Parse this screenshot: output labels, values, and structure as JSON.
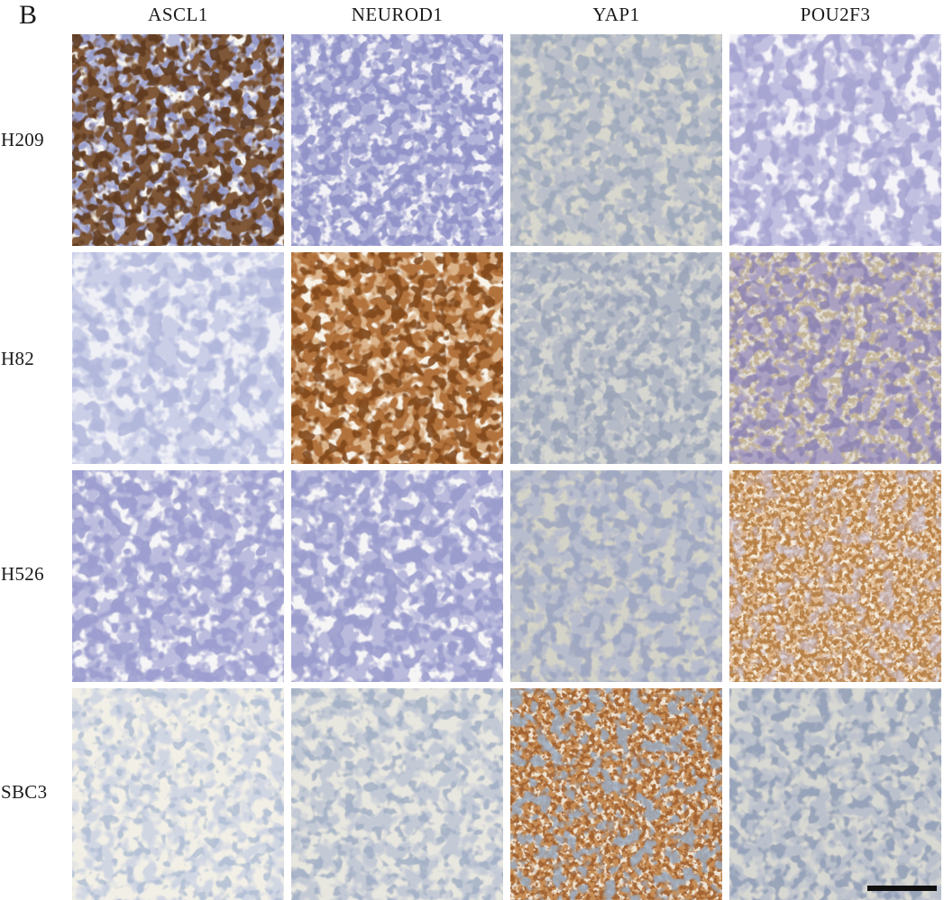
{
  "figure": {
    "panel_label": "B",
    "kind": "immunohistochemistry staining grid",
    "scale_bar": {
      "present": true,
      "color": "#101010"
    }
  },
  "columns": [
    {
      "label": "ASCL1"
    },
    {
      "label": "NEUROD1"
    },
    {
      "label": "YAP1"
    },
    {
      "label": "POU2F3"
    }
  ],
  "rows": [
    {
      "label": "H209"
    },
    {
      "label": "H82"
    },
    {
      "label": "H526"
    },
    {
      "label": "SBC3"
    }
  ],
  "tiles": [
    {
      "cell_line": "H209",
      "marker": "ASCL1",
      "appearance": "scattered dark-brown positive nuclei among pale blue cells on white background",
      "bg": "#f7f5f0",
      "layers": [
        {
          "c": "#b3b7da",
          "f": 0.055,
          "o": 3,
          "s": 11,
          "a": 7,
          "b": -2.7,
          "op": 0.95
        },
        {
          "c": "#8f94c6",
          "f": 0.075,
          "o": 2,
          "s": 19,
          "a": 8,
          "b": -3.7,
          "op": 0.85
        },
        {
          "c": "#7c5230",
          "f": 0.07,
          "o": 2,
          "s": 23,
          "a": 9,
          "b": -4.1,
          "op": 0.95
        },
        {
          "c": "#5f3a1e",
          "f": 0.085,
          "o": 2,
          "s": 31,
          "a": 9,
          "b": -4.5,
          "op": 0.9
        }
      ]
    },
    {
      "cell_line": "H209",
      "marker": "NEUROD1",
      "appearance": "diffuse pale blue-violet cells, negative",
      "bg": "#f2f1f6",
      "layers": [
        {
          "c": "#b0b1d8",
          "f": 0.065,
          "o": 3,
          "s": 41,
          "a": 7,
          "b": -2.7,
          "op": 0.95
        },
        {
          "c": "#8d8fc7",
          "f": 0.09,
          "o": 2,
          "s": 47,
          "a": 8,
          "b": -3.6,
          "op": 0.85
        }
      ]
    },
    {
      "cell_line": "H209",
      "marker": "YAP1",
      "appearance": "faint gray-blue cells on beige-gray background, negative",
      "bg": "#d8d7cd",
      "layers": [
        {
          "c": "#b7bdca",
          "f": 0.06,
          "o": 3,
          "s": 53,
          "a": 6,
          "b": -2.3,
          "op": 0.9
        },
        {
          "c": "#9aa6bb",
          "f": 0.08,
          "o": 2,
          "s": 59,
          "a": 7,
          "b": -3.4,
          "op": 0.8
        }
      ]
    },
    {
      "cell_line": "H209",
      "marker": "POU2F3",
      "appearance": "soft lavender cells on white background, negative",
      "bg": "#f4f3f8",
      "layers": [
        {
          "c": "#c0bee0",
          "f": 0.05,
          "o": 3,
          "s": 61,
          "a": 7,
          "b": -2.7,
          "op": 0.95
        },
        {
          "c": "#a3a1d0",
          "f": 0.065,
          "o": 2,
          "s": 67,
          "a": 8,
          "b": -3.8,
          "op": 0.85
        }
      ]
    },
    {
      "cell_line": "H82",
      "marker": "ASCL1",
      "appearance": "very pale lavender cells, negative",
      "bg": "#eff0f6",
      "layers": [
        {
          "c": "#c9cde7",
          "f": 0.05,
          "o": 3,
          "s": 71,
          "a": 7,
          "b": -2.8,
          "op": 0.95
        },
        {
          "c": "#adb3da",
          "f": 0.06,
          "o": 2,
          "s": 73,
          "a": 8,
          "b": -3.9,
          "op": 0.8
        }
      ]
    },
    {
      "cell_line": "H82",
      "marker": "NEUROD1",
      "appearance": "strong brown positive round nuclei on cream background",
      "bg": "#f8f3e9",
      "layers": [
        {
          "c": "#d9b085",
          "f": 0.07,
          "o": 2,
          "s": 79,
          "a": 8,
          "b": -3.1,
          "op": 0.95
        },
        {
          "c": "#b06f38",
          "f": 0.075,
          "o": 2,
          "s": 83,
          "a": 9,
          "b": -3.8,
          "op": 0.95
        },
        {
          "c": "#7e4518",
          "f": 0.08,
          "o": 2,
          "s": 89,
          "a": 9,
          "b": -4.5,
          "op": 0.85
        }
      ]
    },
    {
      "cell_line": "H82",
      "marker": "YAP1",
      "appearance": "faint gray-blue cells on gray background, negative",
      "bg": "#d6d6d1",
      "layers": [
        {
          "c": "#b2b8c6",
          "f": 0.065,
          "o": 3,
          "s": 97,
          "a": 6,
          "b": -2.3,
          "op": 0.9
        },
        {
          "c": "#96a1b7",
          "f": 0.085,
          "o": 2,
          "s": 101,
          "a": 7,
          "b": -3.4,
          "op": 0.8
        }
      ]
    },
    {
      "cell_line": "H82",
      "marker": "POU2F3",
      "appearance": "weak tan speckling with violet nuclei on gray-cream background",
      "bg": "#e2dcd5",
      "layers": [
        {
          "c": "#bba883",
          "f": 0.18,
          "o": 2,
          "s": 103,
          "a": 5,
          "b": -1.9,
          "op": 0.75
        },
        {
          "c": "#a79dc4",
          "f": 0.065,
          "o": 2,
          "s": 107,
          "a": 7,
          "b": -3.1,
          "op": 0.9
        },
        {
          "c": "#8a81b2",
          "f": 0.08,
          "o": 2,
          "s": 109,
          "a": 8,
          "b": -4.0,
          "op": 0.8
        }
      ]
    },
    {
      "cell_line": "H526",
      "marker": "ASCL1",
      "appearance": "pale periwinkle cells on white background, negative",
      "bg": "#f5f4f6",
      "layers": [
        {
          "c": "#b9badd",
          "f": 0.055,
          "o": 3,
          "s": 113,
          "a": 7,
          "b": -2.6,
          "op": 0.95
        },
        {
          "c": "#999bce",
          "f": 0.07,
          "o": 2,
          "s": 127,
          "a": 8,
          "b": -3.6,
          "op": 0.85
        }
      ]
    },
    {
      "cell_line": "H526",
      "marker": "NEUROD1",
      "appearance": "pale periwinkle cells on white background, negative",
      "bg": "#f6f5f6",
      "layers": [
        {
          "c": "#b6b7db",
          "f": 0.055,
          "o": 3,
          "s": 131,
          "a": 7,
          "b": -2.6,
          "op": 0.95
        },
        {
          "c": "#9698cb",
          "f": 0.07,
          "o": 2,
          "s": 137,
          "a": 8,
          "b": -3.6,
          "op": 0.85
        }
      ]
    },
    {
      "cell_line": "H526",
      "marker": "YAP1",
      "appearance": "lavender-gray cells on beige background, negative",
      "bg": "#d4d3c8",
      "layers": [
        {
          "c": "#b6bbce",
          "f": 0.06,
          "o": 3,
          "s": 139,
          "a": 6,
          "b": -2.3,
          "op": 0.9
        },
        {
          "c": "#9aa3c0",
          "f": 0.075,
          "o": 2,
          "s": 149,
          "a": 7,
          "b": -3.4,
          "op": 0.8
        }
      ]
    },
    {
      "cell_line": "H526",
      "marker": "POU2F3",
      "appearance": "dense speckled brown positive staining on cream background",
      "bg": "#f5edde",
      "layers": [
        {
          "c": "#dcb184",
          "f": 0.16,
          "o": 2,
          "s": 151,
          "a": 6,
          "b": -2.2,
          "op": 0.9
        },
        {
          "c": "#b47c40",
          "f": 0.19,
          "o": 2,
          "s": 157,
          "a": 7,
          "b": -3.0,
          "op": 0.9
        },
        {
          "c": "#cac5de",
          "f": 0.06,
          "o": 2,
          "s": 163,
          "a": 6,
          "b": -3.1,
          "op": 0.6
        }
      ]
    },
    {
      "cell_line": "SBC3",
      "marker": "ASCL1",
      "appearance": "very faint blue-gray nuclei on pale cream background, negative",
      "bg": "#f2f0e6",
      "layers": [
        {
          "c": "#ced4e3",
          "f": 0.065,
          "o": 2,
          "s": 167,
          "a": 6,
          "b": -2.6,
          "op": 0.9
        },
        {
          "c": "#aebcd3",
          "f": 0.085,
          "o": 2,
          "s": 173,
          "a": 7,
          "b": -3.8,
          "op": 0.8
        }
      ]
    },
    {
      "cell_line": "SBC3",
      "marker": "NEUROD1",
      "appearance": "faint gray-blue nuclei on pale gray background, negative",
      "bg": "#e7e6df",
      "layers": [
        {
          "c": "#c0c7d6",
          "f": 0.065,
          "o": 2,
          "s": 179,
          "a": 6,
          "b": -2.5,
          "op": 0.9
        },
        {
          "c": "#9fadc4",
          "f": 0.085,
          "o": 2,
          "s": 181,
          "a": 7,
          "b": -3.7,
          "op": 0.8
        }
      ]
    },
    {
      "cell_line": "SBC3",
      "marker": "YAP1",
      "appearance": "strong orange-brown cytoplasmic/membranous positive staining with blue-gray nuclei",
      "bg": "#eee3d3",
      "layers": [
        {
          "c": "#c28449",
          "f": 0.15,
          "o": 2,
          "s": 191,
          "a": 7,
          "b": -2.7,
          "op": 0.9
        },
        {
          "c": "#9d5c2b",
          "f": 0.19,
          "o": 2,
          "s": 193,
          "a": 8,
          "b": -3.8,
          "op": 0.85
        },
        {
          "c": "#9cadc2",
          "f": 0.07,
          "o": 2,
          "s": 197,
          "a": 7,
          "b": -3.5,
          "op": 0.85
        }
      ]
    },
    {
      "cell_line": "SBC3",
      "marker": "POU2F3",
      "appearance": "gray-blue nuclei on gray background, negative",
      "bg": "#d8d8d2",
      "layers": [
        {
          "c": "#b8bfcc",
          "f": 0.065,
          "o": 2,
          "s": 199,
          "a": 6,
          "b": -2.4,
          "op": 0.9
        },
        {
          "c": "#919eb7",
          "f": 0.08,
          "o": 2,
          "s": 211,
          "a": 7,
          "b": -3.5,
          "op": 0.85
        }
      ]
    }
  ]
}
